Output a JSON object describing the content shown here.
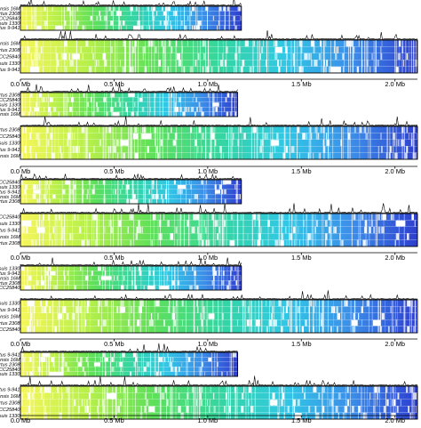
{
  "axis": {
    "unit": "Mb",
    "max_mb": 2.12,
    "ticks": [
      {
        "value": 0.0,
        "label": "0.0 Mb"
      },
      {
        "value": 0.5,
        "label": "0.5 Mb"
      },
      {
        "value": 1.0,
        "label": "1.0 Mb"
      },
      {
        "value": 1.5,
        "label": "1.5 Mb"
      },
      {
        "value": 2.0,
        "label": "2.0 Mb"
      }
    ]
  },
  "colors": {
    "gradient": [
      "#f6f65a",
      "#b8f04a",
      "#5ee05a",
      "#35d6a0",
      "#30c8e6",
      "#3c8ee8",
      "#2e3fd0"
    ],
    "frame": "#000000"
  },
  "panels": [
    {
      "small": {
        "length_mb": 1.18,
        "genomes": [
          "B. melitensis 16M",
          "B. abortus 2308",
          "B. ovis ATCC25840",
          "B. suis 1330",
          "B. abortus 9-941"
        ]
      },
      "large": {
        "length_mb": 2.12,
        "genomes": [
          "B. melitensis 16M",
          "B. abortus 2308",
          "B. ovis ATCC25840",
          "B. suis 1330",
          "B. abortus 9-941"
        ]
      }
    },
    {
      "small": {
        "length_mb": 1.16,
        "genomes": [
          "B. abortus 2308",
          "B. ovis ATCC25840",
          "B. suis 1330",
          "B. abortus 9-941",
          "B. melitensis 16M"
        ]
      },
      "large": {
        "length_mb": 2.12,
        "genomes": [
          "B. abortus 2308",
          "B. ovis ATCC25840",
          "B. suis 1330",
          "B. abortus 9-941",
          "B. melitensis 16M"
        ]
      }
    },
    {
      "small": {
        "length_mb": 1.18,
        "genomes": [
          "B. ovis ATCC25840",
          "B. suis 1330",
          "B. abortus 9-941",
          "B. melitensis 16M",
          "B. abortus 2308"
        ]
      },
      "large": {
        "length_mb": 2.12,
        "genomes": [
          "B. ovis ATCC25840",
          "B. suis 1330",
          "B. abortus 9-941",
          "B. melitensis 16M",
          "B. abortus 2308"
        ]
      }
    },
    {
      "small": {
        "length_mb": 1.18,
        "genomes": [
          "B. suis 1330",
          "B. abortus 9-941",
          "B. melitensis 16M",
          "B. abortus 2308",
          "B. ovis ATCC25840"
        ]
      },
      "large": {
        "length_mb": 2.12,
        "genomes": [
          "B. suis 1330",
          "B. abortus 9-941",
          "B. melitensis 16M",
          "B. abortus 2308",
          "B. ovis ATCC25840"
        ]
      }
    },
    {
      "small": {
        "length_mb": 1.16,
        "genomes": [
          "B. abortus 9-941",
          "B. melitensis 16M",
          "B. abortus 2308",
          "B. ovis ATCC25840",
          "B. suis 1330"
        ]
      },
      "large": {
        "length_mb": 2.12,
        "genomes": [
          "B. abortus 9-941",
          "B. melitensis 16M",
          "B. abortus 2308",
          "B. ovis ATCC25840",
          "B. suis 1330"
        ]
      }
    }
  ]
}
